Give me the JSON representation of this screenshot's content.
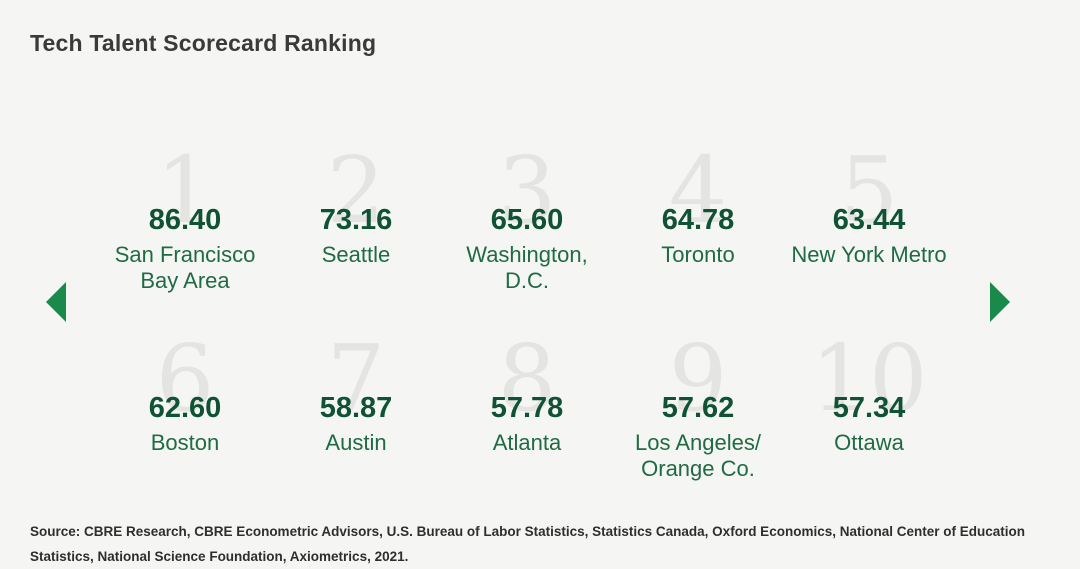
{
  "title": "Tech Talent Scorecard Ranking",
  "source": "Source: CBRE Research, CBRE Econometric Advisors, U.S. Bureau of Labor Statistics, Statistics Canada, Oxford Economics, National Center of Education Statistics, National Science Foundation, Axiometrics, 2021.",
  "colors": {
    "score": "#0f5234",
    "city": "#1f6b43",
    "arrow": "#1a8a4a",
    "rank": "#e4e4e2"
  },
  "navigation": {
    "prev_icon": "triangle-left-icon",
    "next_icon": "triangle-right-icon"
  },
  "chart_data": {
    "type": "table",
    "title": "Tech Talent Scorecard Ranking",
    "entries": [
      {
        "rank": "1",
        "score": "86.40",
        "city": "San Francisco\nBay Area"
      },
      {
        "rank": "2",
        "score": "73.16",
        "city": "Seattle"
      },
      {
        "rank": "3",
        "score": "65.60",
        "city": "Washington,\nD.C."
      },
      {
        "rank": "4",
        "score": "64.78",
        "city": "Toronto"
      },
      {
        "rank": "5",
        "score": "63.44",
        "city": "New York Metro"
      },
      {
        "rank": "6",
        "score": "62.60",
        "city": "Boston"
      },
      {
        "rank": "7",
        "score": "58.87",
        "city": "Austin"
      },
      {
        "rank": "8",
        "score": "57.78",
        "city": "Atlanta"
      },
      {
        "rank": "9",
        "score": "57.62",
        "city": "Los Angeles/\nOrange Co."
      },
      {
        "rank": "10",
        "score": "57.34",
        "city": "Ottawa"
      }
    ]
  }
}
